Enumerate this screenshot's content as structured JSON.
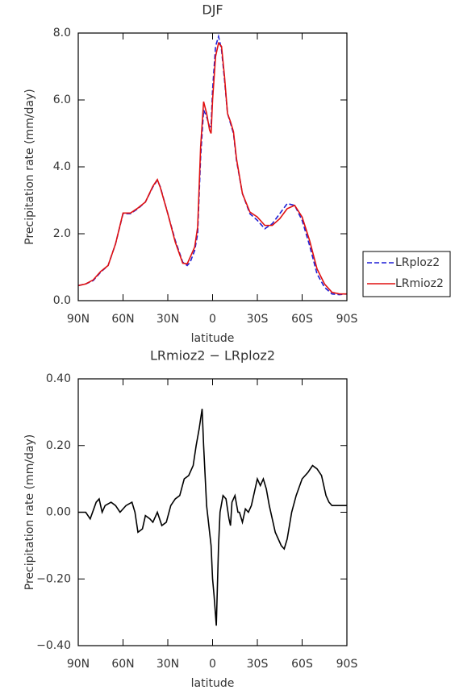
{
  "chart_data": [
    {
      "type": "line",
      "title": "DJF",
      "xlabel": "latitude",
      "ylabel": "Precipitation rate (mm/day)",
      "x": [
        90,
        85,
        80,
        75,
        70,
        65,
        60,
        55,
        50,
        45,
        40,
        37,
        35,
        30,
        25,
        20,
        17,
        15,
        12,
        10,
        8,
        6,
        4,
        2,
        1,
        0,
        -2,
        -4,
        -6,
        -8,
        -10,
        -12,
        -14,
        -16,
        -20,
        -25,
        -30,
        -35,
        -40,
        -45,
        -50,
        -55,
        -60,
        -65,
        -70,
        -75,
        -80,
        -85,
        -90
      ],
      "series": [
        {
          "name": "LRploz2",
          "color": "#1f1fd6",
          "style": "dashed",
          "values": [
            0.45,
            0.5,
            0.6,
            0.85,
            1.05,
            1.7,
            2.6,
            2.6,
            2.75,
            2.95,
            3.4,
            3.6,
            3.4,
            2.6,
            1.8,
            1.15,
            1.05,
            1.15,
            1.5,
            2.0,
            4.3,
            5.7,
            5.5,
            5.2,
            5.2,
            6.3,
            7.6,
            7.9,
            7.5,
            6.6,
            5.6,
            5.3,
            5.0,
            4.2,
            3.2,
            2.6,
            2.4,
            2.15,
            2.3,
            2.6,
            2.9,
            2.85,
            2.4,
            1.65,
            0.8,
            0.4,
            0.2,
            0.18,
            0.2
          ]
        },
        {
          "name": "LRmioz2",
          "color": "#e01010",
          "style": "solid",
          "values": [
            0.45,
            0.5,
            0.62,
            0.87,
            1.05,
            1.7,
            2.62,
            2.62,
            2.77,
            2.95,
            3.42,
            3.62,
            3.38,
            2.6,
            1.75,
            1.12,
            1.1,
            1.3,
            1.6,
            2.2,
            4.6,
            5.95,
            5.6,
            5.1,
            5.0,
            6.0,
            7.3,
            7.7,
            7.6,
            6.7,
            5.6,
            5.35,
            5.05,
            4.25,
            3.2,
            2.65,
            2.5,
            2.25,
            2.25,
            2.45,
            2.75,
            2.85,
            2.5,
            1.8,
            0.95,
            0.5,
            0.25,
            0.2,
            0.2
          ]
        }
      ],
      "xlim": [
        90,
        -90
      ],
      "xticks": [
        {
          "value": 90,
          "label": "90N"
        },
        {
          "value": 60,
          "label": "60N"
        },
        {
          "value": 30,
          "label": "30N"
        },
        0,
        {
          "value": -30,
          "label": "30S"
        },
        {
          "value": -60,
          "label": "60S"
        },
        {
          "value": -90,
          "label": "90S"
        }
      ],
      "ylim": [
        0,
        8
      ],
      "yticks": [
        {
          "value": 0,
          "label": "0.0"
        },
        {
          "value": 2,
          "label": "2.0"
        },
        {
          "value": 4,
          "label": "4.0"
        },
        {
          "value": 6,
          "label": "6.0"
        },
        {
          "value": 8,
          "label": "8.0"
        }
      ],
      "legend": "right"
    },
    {
      "type": "line",
      "title": "LRmioz2 − LRploz2",
      "xlabel": "latitude",
      "ylabel": "Precipitation rate (mm/day)",
      "x": [
        90,
        85,
        82,
        78,
        76,
        74,
        72,
        68,
        65,
        62,
        60,
        58,
        54,
        52,
        50,
        47,
        45,
        42,
        40,
        37,
        34,
        31,
        28,
        25,
        22,
        19,
        16,
        13,
        11,
        9,
        7,
        6,
        4,
        3,
        1,
        0,
        -1,
        -2.5,
        -4,
        -5,
        -7,
        -9,
        -11,
        -12,
        -13,
        -15,
        -17,
        -18,
        -20,
        -22,
        -24,
        -26,
        -28,
        -30,
        -32,
        -34,
        -36,
        -38,
        -42,
        -46,
        -48,
        -50,
        -53,
        -56,
        -60,
        -64,
        -67,
        -70,
        -73,
        -76,
        -78,
        -80,
        -85,
        -90
      ],
      "series": [
        {
          "color": "#000000",
          "style": "solid",
          "values": [
            0.0,
            0.0,
            -0.02,
            0.03,
            0.04,
            0.0,
            0.02,
            0.03,
            0.02,
            0.0,
            0.01,
            0.02,
            0.03,
            0.0,
            -0.06,
            -0.05,
            -0.01,
            -0.02,
            -0.03,
            0.0,
            -0.04,
            -0.03,
            0.02,
            0.04,
            0.05,
            0.1,
            0.11,
            0.14,
            0.2,
            0.25,
            0.31,
            0.2,
            0.02,
            -0.02,
            -0.1,
            -0.2,
            -0.25,
            -0.34,
            -0.1,
            0.0,
            0.05,
            0.04,
            -0.02,
            -0.04,
            0.03,
            0.05,
            0.0,
            0.0,
            -0.03,
            0.01,
            0.0,
            0.02,
            0.06,
            0.1,
            0.08,
            0.1,
            0.07,
            0.02,
            -0.06,
            -0.1,
            -0.11,
            -0.08,
            0.0,
            0.05,
            0.1,
            0.12,
            0.14,
            0.13,
            0.11,
            0.05,
            0.03,
            0.02,
            0.02,
            0.02
          ]
        }
      ],
      "xlim": [
        90,
        -90
      ],
      "xticks": [
        {
          "value": 90,
          "label": "90N"
        },
        {
          "value": 60,
          "label": "60N"
        },
        {
          "value": 30,
          "label": "30N"
        },
        0,
        {
          "value": -30,
          "label": "30S"
        },
        {
          "value": -60,
          "label": "60S"
        },
        {
          "value": -90,
          "label": "90S"
        }
      ],
      "ylim": [
        -0.4,
        0.4
      ],
      "yticks": [
        {
          "value": -0.4,
          "label": "−0.40"
        },
        {
          "value": -0.2,
          "label": "−0.20"
        },
        {
          "value": 0,
          "label": "0.00"
        },
        {
          "value": 0.2,
          "label": "0.20"
        },
        {
          "value": 0.4,
          "label": "0.40"
        }
      ]
    }
  ]
}
